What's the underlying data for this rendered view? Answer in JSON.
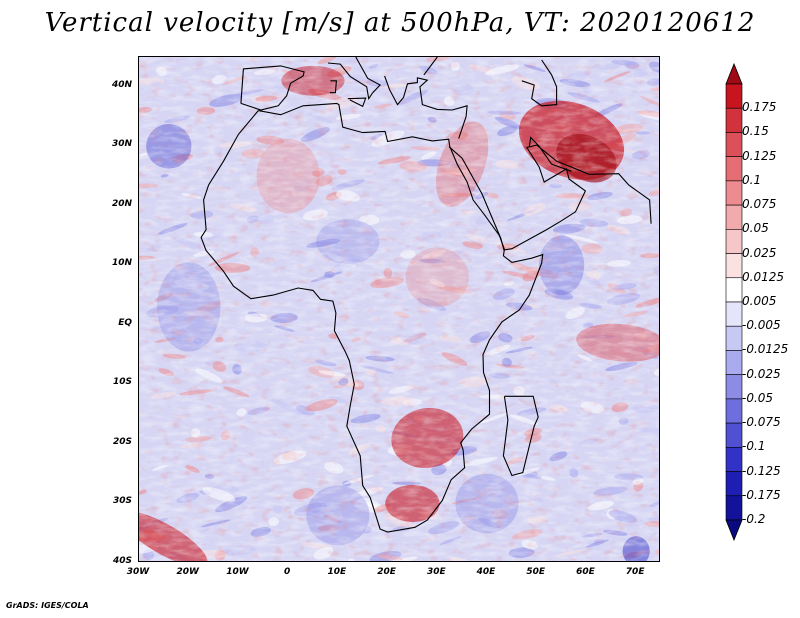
{
  "title": "Vertical velocity [m/s] at 500hPa, VT: 2020120612",
  "credit": "GrADS: IGES/COLA",
  "lat_labels": [
    "40N",
    "30N",
    "20N",
    "10N",
    "EQ",
    "10S",
    "20S",
    "30S",
    "40S"
  ],
  "lon_labels": [
    "30W",
    "20W",
    "10W",
    "0",
    "10E",
    "20E",
    "30E",
    "40E",
    "50E",
    "60E",
    "70E"
  ],
  "colorbar": {
    "labels": [
      "0.175",
      "0.15",
      "0.125",
      "0.1",
      "0.075",
      "0.05",
      "0.025",
      "0.0125",
      "0.005",
      "-0.005",
      "-0.0125",
      "-0.025",
      "-0.05",
      "-0.075",
      "-0.1",
      "-0.125",
      "-0.175",
      "-0.2"
    ],
    "colors": [
      "#c8141e",
      "#d2323c",
      "#dc505a",
      "#e46e74",
      "#ec8c90",
      "#f2aaac",
      "#f6c6c8",
      "#fae2e2",
      "#ffffff",
      "#e4e4fa",
      "#c8c8f4",
      "#aaaaee",
      "#8c8ce6",
      "#6e6ede",
      "#5050d2",
      "#3232c6",
      "#1e1eb4",
      "#12129a"
    ]
  },
  "map": {
    "lat_range": [
      -40,
      45
    ],
    "lon_range": [
      -30,
      75
    ],
    "field": "Vertical velocity",
    "level": "500hPa",
    "valid_time": "2020120612"
  }
}
